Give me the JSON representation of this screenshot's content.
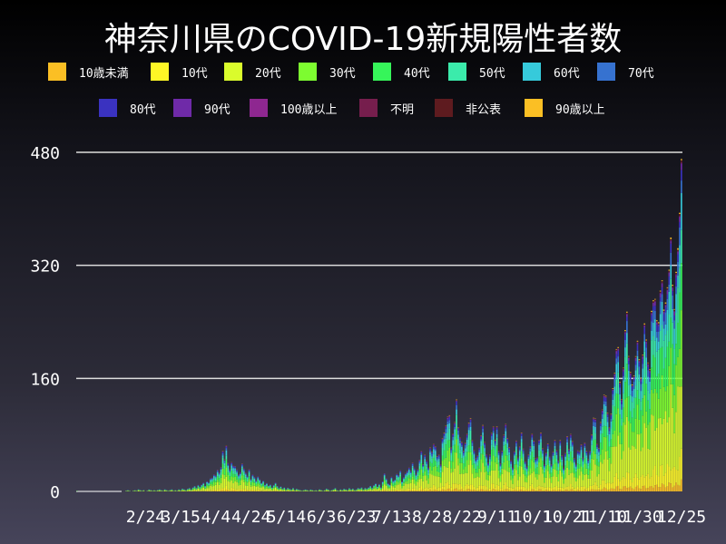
{
  "chart_data": {
    "type": "bar",
    "stacked": true,
    "title": "神奈川県のCOVID-19新規陽性者数",
    "xlabel": "",
    "ylabel": "",
    "ylim": [
      0,
      480
    ],
    "yticks": [
      0,
      160,
      320,
      480
    ],
    "xtick_labels": [
      "2/24",
      "3/15",
      "4/4",
      "4/24",
      "5/14",
      "6/3",
      "6/23",
      "7/13",
      "8/2",
      "8/22",
      "9/11",
      "10/1",
      "10/21",
      "11/10",
      "11/30",
      "12/25"
    ],
    "x_range": [
      "1/16",
      "12/25"
    ],
    "grid": "horizontal",
    "legend_placement": "top",
    "series": [
      {
        "name": "10歳未満",
        "color": "#fbbf24",
        "share": 0.03
      },
      {
        "name": "10代",
        "color": "#fef726",
        "share": 0.08
      },
      {
        "name": "20代",
        "color": "#dafc2c",
        "share": 0.27
      },
      {
        "name": "30代",
        "color": "#7dfc30",
        "share": 0.17
      },
      {
        "name": "40代",
        "color": "#36f55a",
        "share": 0.15
      },
      {
        "name": "50代",
        "color": "#3bebab",
        "share": 0.12
      },
      {
        "name": "60代",
        "color": "#36cadb",
        "share": 0.08
      },
      {
        "name": "70代",
        "color": "#3672d0",
        "share": 0.05
      },
      {
        "name": "80代",
        "color": "#3a32c0",
        "share": 0.03
      },
      {
        "name": "90代",
        "color": "#6f2aa8",
        "share": 0.015
      },
      {
        "name": "100歳以上",
        "color": "#8e2790",
        "share": 0.002
      },
      {
        "name": "不明",
        "color": "#761e4d",
        "share": 0.003
      },
      {
        "name": "非公表",
        "color": "#5e1b1f",
        "share": 0.005
      },
      {
        "name": "90歳以上",
        "color": "#fbbf24",
        "share": 0.005
      }
    ],
    "daily_totals": [
      1,
      0,
      0,
      0,
      0,
      0,
      0,
      0,
      0,
      0,
      0,
      0,
      0,
      0,
      0,
      0,
      0,
      0,
      0,
      0,
      0,
      0,
      0,
      0,
      0,
      0,
      0,
      0,
      1,
      2,
      1,
      0,
      1,
      2,
      1,
      3,
      2,
      1,
      2,
      0,
      1,
      3,
      2,
      1,
      2,
      1,
      2,
      3,
      2,
      1,
      3,
      2,
      1,
      2,
      3,
      1,
      2,
      1,
      3,
      2,
      4,
      3,
      2,
      4,
      5,
      3,
      6,
      8,
      5,
      9,
      7,
      10,
      12,
      8,
      15,
      13,
      18,
      20,
      25,
      22,
      30,
      28,
      35,
      55,
      45,
      68,
      40,
      30,
      42,
      38,
      35,
      30,
      25,
      28,
      38,
      32,
      28,
      22,
      30,
      18,
      25,
      20,
      15,
      22,
      18,
      12,
      15,
      10,
      12,
      8,
      10,
      6,
      9,
      12,
      8,
      5,
      7,
      4,
      6,
      3,
      5,
      4,
      3,
      5,
      2,
      4,
      3,
      2,
      1,
      2,
      3,
      2,
      1,
      3,
      2,
      1,
      2,
      1,
      3,
      2,
      1,
      2,
      4,
      3,
      1,
      2,
      3,
      5,
      2,
      1,
      3,
      2,
      4,
      3,
      2,
      5,
      3,
      4,
      2,
      3,
      5,
      4,
      6,
      3,
      5,
      4,
      6,
      8,
      5,
      9,
      12,
      7,
      10,
      6,
      15,
      25,
      18,
      12,
      10,
      20,
      15,
      18,
      25,
      22,
      30,
      15,
      20,
      25,
      30,
      35,
      28,
      40,
      35,
      25,
      30,
      45,
      60,
      38,
      50,
      45,
      35,
      60,
      55,
      70,
      65,
      48,
      52,
      40,
      75,
      80,
      95,
      110,
      105,
      60,
      85,
      100,
      125,
      90,
      80,
      70,
      55,
      70,
      85,
      95,
      100,
      75,
      60,
      45,
      50,
      65,
      80,
      90,
      70,
      55,
      40,
      50,
      85,
      95,
      70,
      90,
      60,
      40,
      55,
      80,
      100,
      75,
      60,
      45,
      35,
      55,
      70,
      50,
      65,
      80,
      60,
      45,
      35,
      50,
      65,
      85,
      70,
      45,
      50,
      75,
      80,
      60,
      40,
      55,
      65,
      50,
      40,
      55,
      70,
      60,
      45,
      70,
      50,
      35,
      55,
      75,
      60,
      85,
      70,
      45,
      40,
      60,
      55,
      65,
      50,
      70,
      55,
      45,
      60,
      80,
      100,
      105,
      70,
      60,
      95,
      120,
      140,
      130,
      110,
      95,
      110,
      140,
      170,
      210,
      200,
      150,
      135,
      180,
      220,
      250,
      200,
      170,
      145,
      165,
      200,
      210,
      180,
      165,
      200,
      230,
      210,
      190,
      175,
      245,
      270,
      285,
      240,
      230,
      290,
      310,
      250,
      260,
      300,
      320,
      345,
      290,
      270,
      310,
      330,
      400,
      490
    ]
  }
}
